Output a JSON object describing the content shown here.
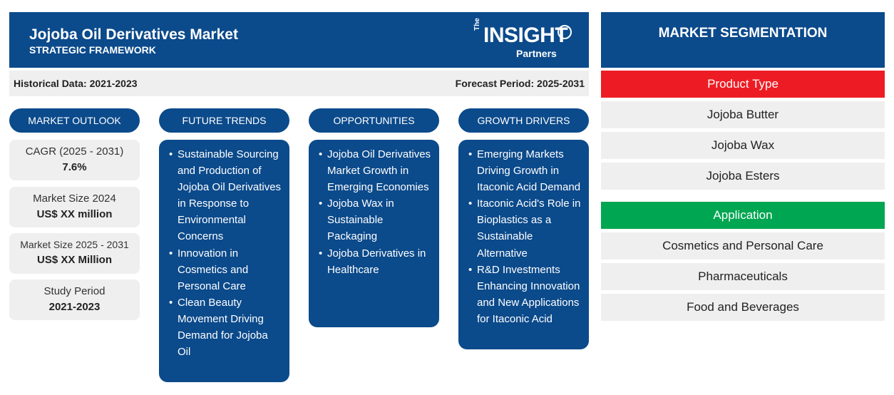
{
  "header": {
    "title": "Jojoba Oil Derivatives Market",
    "subtitle": "STRATEGIC FRAMEWORK",
    "logo": {
      "the": "The",
      "insight": "INSIGHT",
      "partners": "Partners"
    }
  },
  "periods": {
    "historical": "Historical Data: 2021-2023",
    "forecast": "Forecast Period: 2025-2031"
  },
  "columns": {
    "outlook": "MARKET OUTLOOK",
    "trends": "FUTURE TRENDS",
    "opportunities": "OPPORTUNITIES",
    "drivers": "GROWTH DRIVERS"
  },
  "outlook": [
    {
      "label": "CAGR (2025 - 2031)",
      "value": "7.6%"
    },
    {
      "label": "Market Size 2024",
      "value": "US$ XX million"
    },
    {
      "label": "Market Size 2025 - 2031",
      "value": "US$ XX Million"
    },
    {
      "label": "Study Period",
      "value": "2021-2023"
    }
  ],
  "trends": [
    "Sustainable Sourcing and Production of Jojoba Oil Derivatives in Response to Environmental Concerns",
    "Innovation in Cosmetics and Personal Care",
    "Clean Beauty Movement Driving Demand for Jojoba Oil"
  ],
  "opportunities": [
    "Jojoba Oil Derivatives Market Growth in Emerging Economies",
    "Jojoba Wax in Sustainable Packaging",
    "Jojoba Derivatives in Healthcare"
  ],
  "drivers": [
    "Emerging Markets Driving Growth in Itaconic Acid Demand",
    "Itaconic Acid's Role in Bioplastics as a Sustainable Alternative",
    "R&D Investments Enhancing Innovation and New Applications for Itaconic Acid"
  ],
  "segmentation": {
    "title": "MARKET SEGMENTATION",
    "product_type": {
      "label": "Product Type",
      "color": "#ed1c24",
      "items": [
        "Jojoba Butter",
        "Jojoba Wax",
        "Jojoba Esters"
      ]
    },
    "application": {
      "label": "Application",
      "color": "#00a651",
      "items": [
        "Cosmetics and Personal Care",
        "Pharmaceuticals",
        "Food and Beverages"
      ]
    }
  },
  "colors": {
    "brand": "#0b4a8b",
    "panel": "#efefef"
  }
}
